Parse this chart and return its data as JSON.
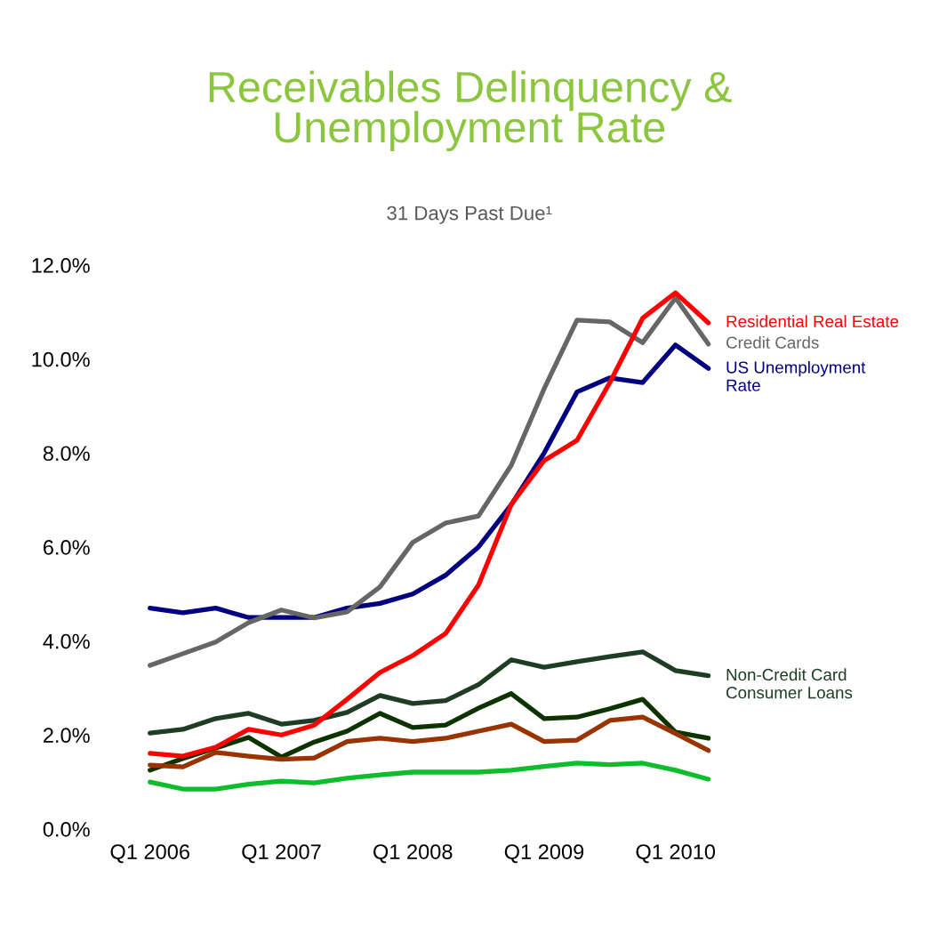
{
  "chart_data": {
    "type": "line",
    "title": "Receivables Delinquency &\nUnemployment Rate",
    "subtitle": "31 Days Past Due¹",
    "categories": [
      "Q1 2006",
      null,
      null,
      null,
      "Q1 2007",
      null,
      null,
      null,
      "Q1 2008",
      null,
      null,
      null,
      "Q1 2009",
      null,
      null,
      null,
      "Q1 2010",
      null
    ],
    "ylim": [
      0,
      12
    ],
    "yticks": [
      {
        "value": 0,
        "label": "0.0%"
      },
      {
        "value": 2,
        "label": "2.0%"
      },
      {
        "value": 4,
        "label": "4.0%"
      },
      {
        "value": 6,
        "label": "6.0%"
      },
      {
        "value": 8,
        "label": "8.0%"
      },
      {
        "value": 10,
        "label": "10.0%"
      },
      {
        "value": 12,
        "label": "12.0%"
      }
    ],
    "grid": false,
    "line_style": "solid",
    "marker": "none",
    "series": [
      {
        "name": "Non-Credit Card\nConsumer Loans",
        "color": "#1e3d24",
        "values": [
          2.04,
          2.12,
          2.35,
          2.46,
          2.23,
          2.31,
          2.48,
          2.84,
          2.67,
          2.73,
          3.07,
          3.6,
          3.44,
          3.56,
          3.67,
          3.77,
          3.37,
          3.26
        ]
      },
      {
        "color": "#0d3300",
        "values": [
          1.25,
          1.5,
          1.72,
          1.95,
          1.53,
          1.85,
          2.08,
          2.46,
          2.16,
          2.21,
          2.57,
          2.88,
          2.35,
          2.38,
          2.56,
          2.76,
          2.06,
          1.93
        ]
      },
      {
        "color": "#993300",
        "values": [
          1.36,
          1.32,
          1.63,
          1.55,
          1.48,
          1.51,
          1.86,
          1.93,
          1.86,
          1.93,
          2.08,
          2.23,
          1.86,
          1.89,
          2.31,
          2.38,
          2.03,
          1.67
        ]
      },
      {
        "color": "#0dbd2b",
        "values": [
          1.0,
          0.85,
          0.85,
          0.95,
          1.02,
          0.98,
          1.08,
          1.15,
          1.21,
          1.21,
          1.21,
          1.25,
          1.33,
          1.4,
          1.37,
          1.4,
          1.25,
          1.06
        ]
      },
      {
        "name": "US Unemployment\nRate",
        "color": "#000080",
        "values": [
          4.7,
          4.6,
          4.7,
          4.5,
          4.5,
          4.5,
          4.7,
          4.8,
          5.0,
          5.4,
          6.0,
          6.9,
          8.0,
          9.3,
          9.6,
          9.5,
          10.3,
          9.8
        ]
      },
      {
        "name": "Credit Cards",
        "color": "#666666",
        "values": [
          3.48,
          3.73,
          3.98,
          4.39,
          4.66,
          4.49,
          4.62,
          5.15,
          6.1,
          6.51,
          6.66,
          7.74,
          9.37,
          10.83,
          10.79,
          10.35,
          11.3,
          10.32
        ]
      },
      {
        "name": "Residential Real Estate",
        "color": "#ff0000",
        "values": [
          1.61,
          1.55,
          1.74,
          2.12,
          2.0,
          2.21,
          2.76,
          3.33,
          3.69,
          4.16,
          5.19,
          6.91,
          7.84,
          8.27,
          9.5,
          10.87,
          11.41,
          10.77
        ]
      }
    ]
  }
}
